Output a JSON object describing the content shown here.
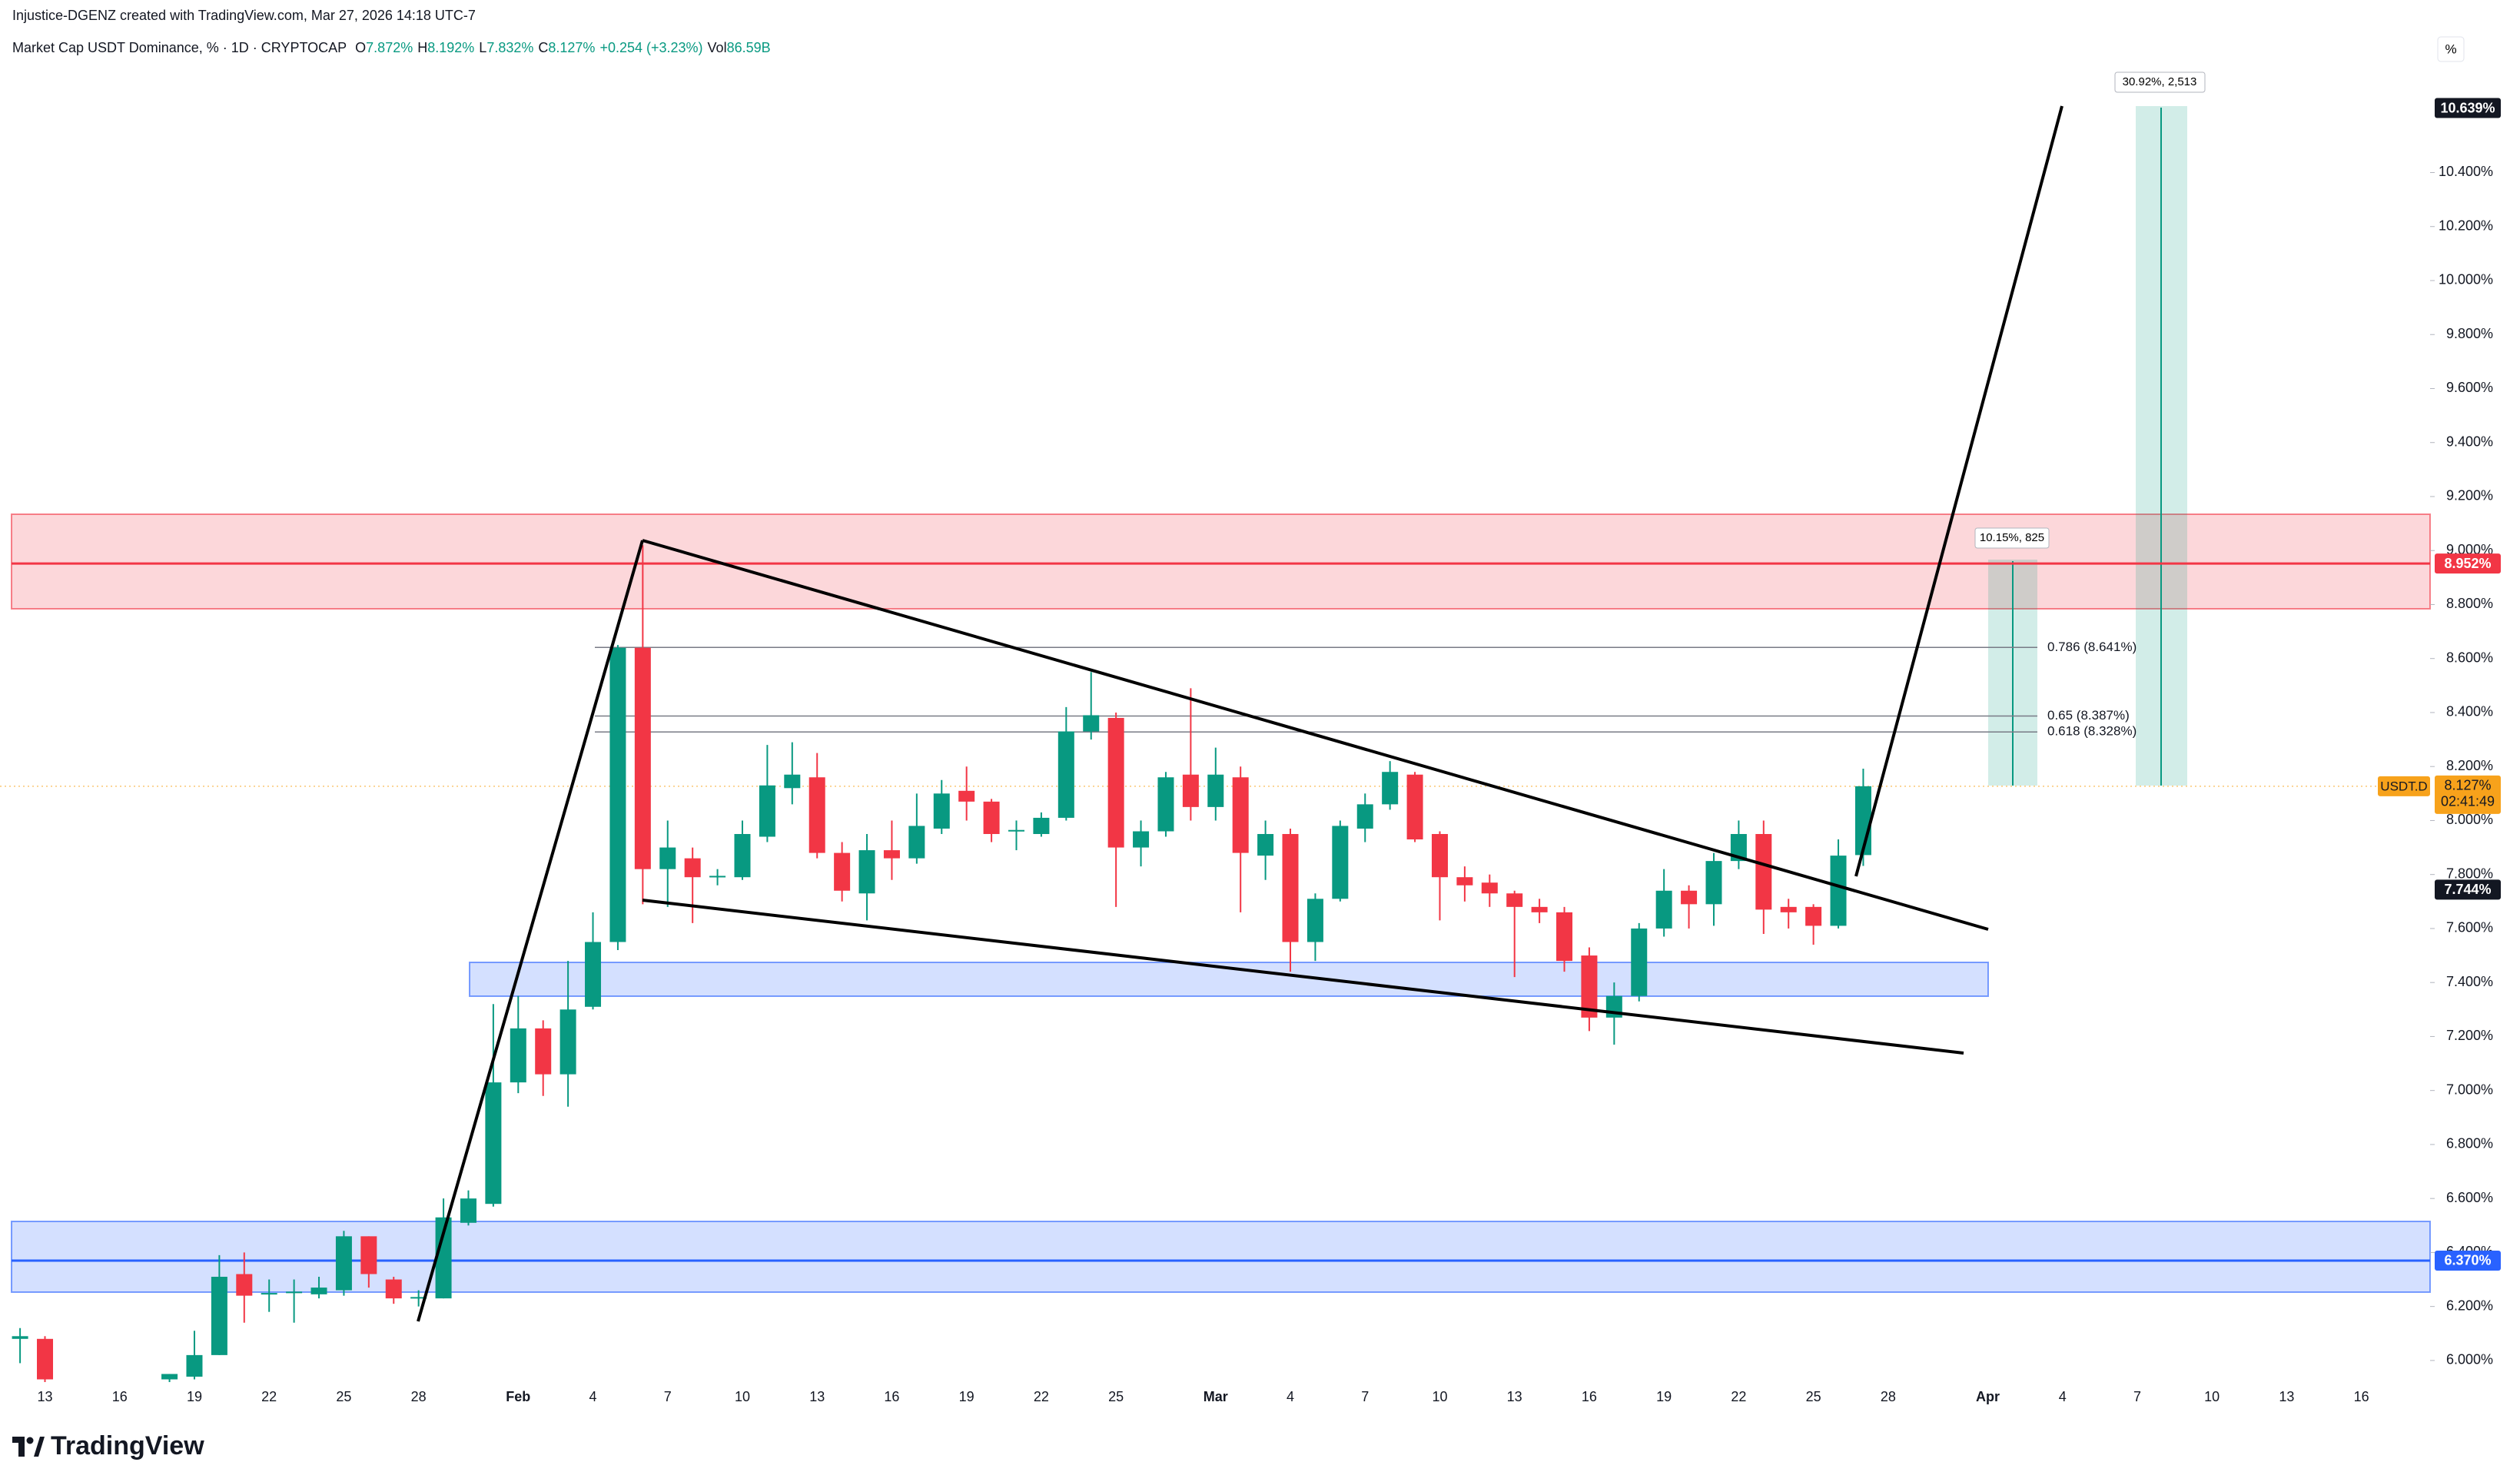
{
  "credit": "Injustice-DGENZ created with TradingView.com, Mar 27, 2026 14:18 UTC-7",
  "brand": "TradingView",
  "scale_button": "%",
  "chart_data": {
    "type": "candlestick",
    "title": "Market Cap USDT Dominance, % · 1D · CRYPTOCAP",
    "ohlc_header": [
      {
        "key": "O",
        "text": "7.872%"
      },
      {
        "key": "H",
        "text": "8.192%"
      },
      {
        "key": "L",
        "text": "7.832%"
      },
      {
        "key": "C",
        "text": "8.127%"
      },
      {
        "key": "",
        "text": "+0.254 (+3.23%)"
      },
      {
        "key": "Vol",
        "text": "86.59B"
      }
    ],
    "up_color": "#089981",
    "down_color": "#f23645",
    "categories": [
      null,
      "13",
      null,
      null,
      "16",
      null,
      null,
      "19",
      null,
      null,
      "22",
      null,
      null,
      "25",
      null,
      null,
      "28",
      null,
      null,
      null,
      "Feb",
      null,
      null,
      "4",
      null,
      null,
      "7",
      null,
      null,
      "10",
      null,
      null,
      "13",
      null,
      null,
      "16",
      null,
      null,
      "19",
      null,
      null,
      "22",
      null,
      null,
      "25",
      null,
      null,
      null,
      "Mar",
      null,
      null,
      "4",
      null,
      null,
      "7",
      null,
      null,
      "10",
      null,
      null,
      "13",
      null,
      null,
      "16",
      null,
      null,
      "19",
      null,
      null,
      "22",
      null,
      null,
      "25",
      null,
      null,
      "28",
      null,
      null,
      null,
      "Apr",
      null,
      null,
      "4",
      null,
      null,
      "7",
      null,
      null,
      "10",
      null,
      null,
      "13",
      null,
      null,
      "16",
      null,
      null
    ],
    "open": [
      6.08,
      6.08,
      null,
      null,
      null,
      null,
      5.93,
      5.94,
      6.02,
      6.32,
      6.25,
      6.25,
      6.245,
      6.26,
      6.46,
      6.3,
      6.23,
      6.23,
      6.51,
      6.58,
      7.03,
      7.23,
      7.06,
      7.31,
      7.55,
      8.64,
      7.82,
      7.86,
      7.79,
      7.79,
      7.94,
      8.12,
      8.16,
      7.88,
      7.73,
      7.89,
      7.86,
      7.97,
      8.11,
      8.07,
      7.96,
      7.95,
      8.01,
      8.33,
      8.38,
      7.9,
      7.96,
      8.17,
      8.05,
      8.16,
      7.87,
      7.95,
      7.55,
      7.71,
      7.97,
      8.06,
      8.17,
      7.95,
      7.79,
      7.77,
      7.73,
      7.68,
      7.66,
      7.5,
      7.27,
      7.35,
      7.6,
      7.74,
      7.69,
      7.85,
      7.95,
      7.68,
      7.68,
      7.61,
      7.872,
      null,
      null,
      null,
      null,
      null,
      null,
      null,
      null,
      null,
      null,
      null,
      null,
      null,
      null,
      null,
      null,
      null,
      null,
      null,
      null,
      null,
      null
    ],
    "high": [
      6.12,
      6.09,
      null,
      null,
      null,
      null,
      5.95,
      6.11,
      6.39,
      6.4,
      6.3,
      6.3,
      6.31,
      6.48,
      6.46,
      6.31,
      6.26,
      6.6,
      6.63,
      7.32,
      7.35,
      7.26,
      7.48,
      7.66,
      8.65,
      9.02,
      8.0,
      7.9,
      7.82,
      8.0,
      8.28,
      8.29,
      8.25,
      7.92,
      7.95,
      8.0,
      8.1,
      8.15,
      8.2,
      8.08,
      8.0,
      8.03,
      8.42,
      8.55,
      8.4,
      8.0,
      8.18,
      8.49,
      8.27,
      8.2,
      8.0,
      7.97,
      7.73,
      8.0,
      8.1,
      8.22,
      8.18,
      7.96,
      7.83,
      7.8,
      7.74,
      7.71,
      7.68,
      7.53,
      7.4,
      7.62,
      7.82,
      7.76,
      7.88,
      8.0,
      8.0,
      7.71,
      7.69,
      7.93,
      8.192,
      null,
      null,
      null,
      null,
      null,
      null,
      null,
      null,
      null,
      null,
      null,
      null,
      null,
      null,
      null,
      null,
      null,
      null,
      null,
      null,
      null,
      null
    ],
    "low": [
      5.99,
      5.92,
      null,
      null,
      null,
      null,
      5.92,
      5.93,
      6.02,
      6.14,
      6.18,
      6.14,
      6.23,
      6.24,
      6.27,
      6.21,
      6.2,
      6.23,
      6.5,
      6.57,
      6.99,
      6.98,
      6.94,
      7.3,
      7.52,
      7.69,
      7.68,
      7.62,
      7.76,
      7.78,
      7.92,
      8.06,
      7.86,
      7.7,
      7.63,
      7.78,
      7.84,
      7.95,
      8.0,
      7.92,
      7.89,
      7.94,
      8.0,
      8.3,
      7.68,
      7.83,
      7.94,
      8.0,
      8.0,
      7.66,
      7.78,
      7.44,
      7.48,
      7.7,
      7.92,
      8.04,
      7.92,
      7.63,
      7.7,
      7.68,
      7.42,
      7.62,
      7.44,
      7.22,
      7.17,
      7.33,
      7.57,
      7.6,
      7.61,
      7.82,
      7.58,
      7.6,
      7.54,
      7.6,
      7.832,
      null,
      null,
      null,
      null,
      null,
      null,
      null,
      null,
      null,
      null,
      null,
      null,
      null,
      null,
      null,
      null,
      null,
      null,
      null,
      null,
      null,
      null
    ],
    "close": [
      6.09,
      5.93,
      null,
      null,
      null,
      null,
      5.95,
      6.02,
      6.31,
      6.24,
      6.25,
      6.255,
      6.27,
      6.46,
      6.32,
      6.23,
      6.235,
      6.53,
      6.6,
      7.03,
      7.23,
      7.06,
      7.3,
      7.55,
      8.64,
      7.82,
      7.9,
      7.79,
      7.795,
      7.95,
      8.13,
      8.17,
      7.88,
      7.74,
      7.89,
      7.86,
      7.98,
      8.1,
      8.07,
      7.95,
      7.965,
      8.01,
      8.33,
      8.39,
      7.9,
      7.96,
      8.16,
      8.05,
      8.17,
      7.88,
      7.95,
      7.55,
      7.71,
      7.98,
      8.06,
      8.18,
      7.93,
      7.79,
      7.76,
      7.73,
      7.68,
      7.66,
      7.48,
      7.27,
      7.35,
      7.6,
      7.74,
      7.69,
      7.85,
      7.95,
      7.67,
      7.66,
      7.61,
      7.87,
      8.127,
      null,
      null,
      null,
      null,
      null,
      null,
      null,
      null,
      null,
      null,
      null,
      null,
      null,
      null,
      null,
      null,
      null,
      null,
      null,
      null,
      null,
      null
    ],
    "ylim": [
      5.92,
      10.8
    ],
    "yticks": [
      {
        "value": 6.0,
        "label": "6.000%"
      },
      {
        "value": 6.2,
        "label": "6.200%"
      },
      {
        "value": 6.4,
        "label": "6.400%"
      },
      {
        "value": 6.6,
        "label": "6.600%"
      },
      {
        "value": 6.8,
        "label": "6.800%"
      },
      {
        "value": 7.0,
        "label": "7.000%"
      },
      {
        "value": 7.2,
        "label": "7.200%"
      },
      {
        "value": 7.4,
        "label": "7.400%"
      },
      {
        "value": 7.6,
        "label": "7.600%"
      },
      {
        "value": 7.8,
        "label": "7.800%"
      },
      {
        "value": 8.0,
        "label": "8.000%"
      },
      {
        "value": 8.2,
        "label": "8.200%"
      },
      {
        "value": 8.4,
        "label": "8.400%"
      },
      {
        "value": 8.6,
        "label": "8.600%"
      },
      {
        "value": 8.8,
        "label": "8.800%"
      },
      {
        "value": 9.0,
        "label": "9.000%"
      },
      {
        "value": 9.2,
        "label": "9.200%"
      },
      {
        "value": 9.4,
        "label": "9.400%"
      },
      {
        "value": 9.6,
        "label": "9.600%"
      },
      {
        "value": 9.8,
        "label": "9.800%"
      },
      {
        "value": 10.0,
        "label": "10.000%"
      },
      {
        "value": 10.2,
        "label": "10.200%"
      },
      {
        "value": 10.4,
        "label": "10.400%"
      }
    ],
    "levels": [
      {
        "value": 8.952,
        "label": "8.952%",
        "color": "#f23645"
      },
      {
        "value": 6.37,
        "label": "6.370%",
        "color": "#2962ff"
      }
    ],
    "price_labels": [
      {
        "value": 10.639,
        "label": "10.639%"
      },
      {
        "value": 7.744,
        "label": "7.744%"
      }
    ],
    "fib_levels": [
      {
        "value": 8.641,
        "label": "0.786 (8.641%)"
      },
      {
        "value": 8.387,
        "label": "0.65 (8.387%)"
      },
      {
        "value": 8.328,
        "label": "0.618 (8.328%)"
      }
    ],
    "last_price": {
      "symbol": "USDT.D",
      "label": "8.127%",
      "countdown": "02:41:49",
      "color": "#f7a21b"
    },
    "measures": [
      {
        "label": "10.15%, 825"
      },
      {
        "label": "30.92%, 2,513"
      }
    ]
  }
}
